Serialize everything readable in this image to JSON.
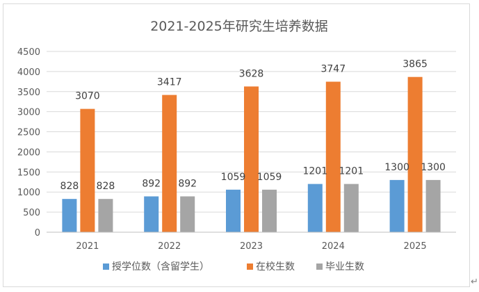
{
  "chart_data": {
    "type": "bar",
    "title": "2021-2025年研究生培养数据",
    "xlabel": "",
    "ylabel": "",
    "categories": [
      "2021",
      "2022",
      "2023",
      "2024",
      "2025"
    ],
    "series": [
      {
        "name": "授学位数（含留学生）",
        "color": "#5b9bd5",
        "values": [
          828,
          892,
          1059,
          1201,
          1300
        ]
      },
      {
        "name": "在校生数",
        "color": "#ed7d31",
        "values": [
          3070,
          3417,
          3628,
          3747,
          3865
        ]
      },
      {
        "name": "毕业生数",
        "color": "#a5a5a5",
        "values": [
          828,
          892,
          1059,
          1201,
          1300
        ]
      }
    ],
    "ylim": [
      0,
      4500
    ],
    "ytick_step": 500,
    "grid": true,
    "legend_position": "bottom",
    "data_labels": true
  },
  "page": {
    "return_mark": "↵"
  }
}
